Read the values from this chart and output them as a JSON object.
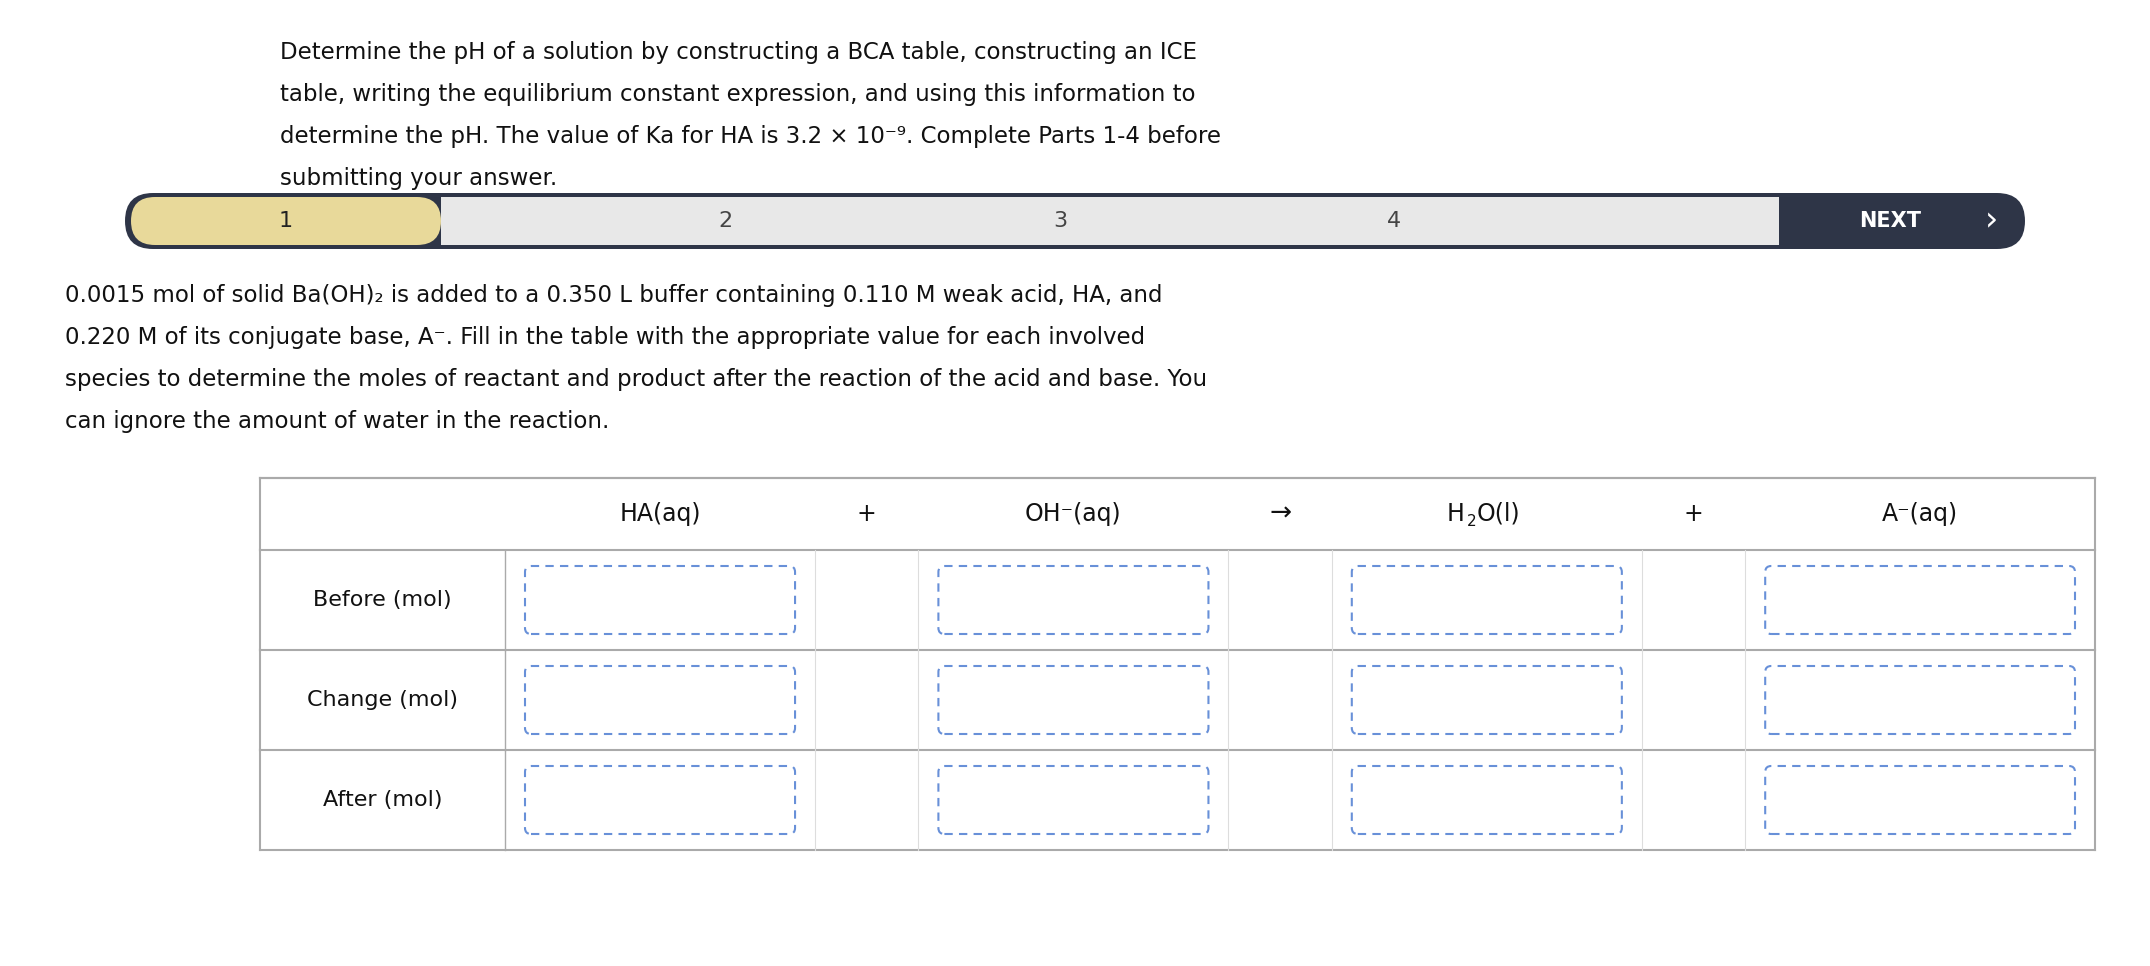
{
  "bg_color": "#ffffff",
  "title_lines": [
    "Determine the pH of a solution by constructing a BCA table, constructing an ICE",
    "table, writing the equilibrium constant expression, and using this information to",
    "determine the pH. The value of Ka for HA is 3.2 × 10⁻⁹. Complete Parts 1-4 before",
    "submitting your answer."
  ],
  "body_lines": [
    "0.0015 mol of solid Ba(OH)₂ is added to a 0.350 L buffer containing 0.110 M weak acid, HA, and",
    "0.220 M of its conjugate base, A⁻. Fill in the table with the appropriate value for each involved",
    "species to determine the moles of reactant and product after the reaction of the acid and base. You",
    "can ignore the amount of water in the reaction."
  ],
  "nav_dark_color": "#2e3547",
  "nav_highlight_color": "#e8d99a",
  "nav_gray_color": "#e8e8e8",
  "nav_labels": [
    "1",
    "2",
    "3",
    "4"
  ],
  "nav_next": "NEXT",
  "nav_arrow": "›",
  "table_row_labels": [
    "Before (mol)",
    "Change (mol)",
    "After (mol)"
  ],
  "box_color": "#3a6ac8",
  "box_dash_color": "#6890d8",
  "font_title": 16.5,
  "font_body": 16.5,
  "font_nav": 15,
  "font_table_hdr": 17,
  "font_row_label": 16
}
